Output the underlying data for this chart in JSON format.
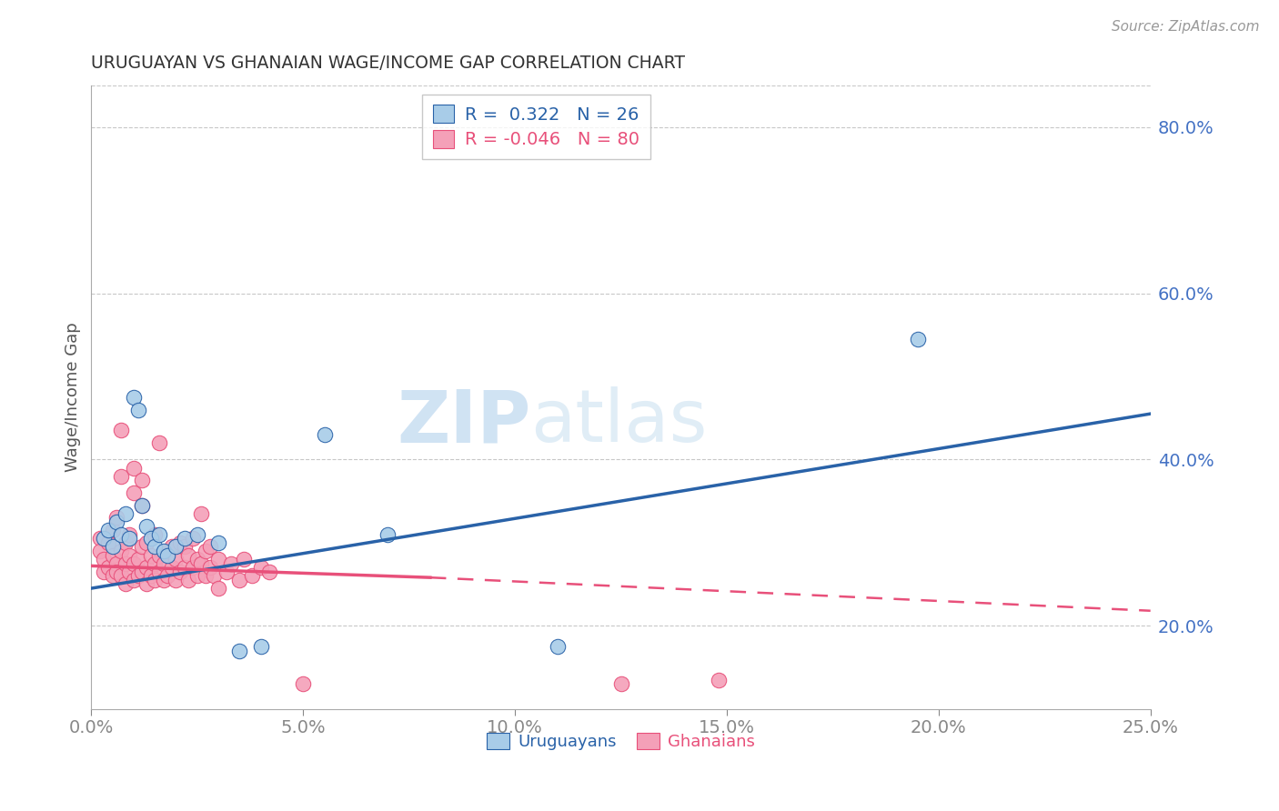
{
  "title": "URUGUAYAN VS GHANAIAN WAGE/INCOME GAP CORRELATION CHART",
  "source": "Source: ZipAtlas.com",
  "ylabel": "Wage/Income Gap",
  "xlim": [
    0.0,
    0.25
  ],
  "ylim": [
    0.1,
    0.85
  ],
  "yticks": [
    0.2,
    0.4,
    0.6,
    0.8
  ],
  "ytick_labels": [
    "20.0%",
    "40.0%",
    "60.0%",
    "80.0%"
  ],
  "xticks": [
    0.0,
    0.05,
    0.1,
    0.15,
    0.2,
    0.25
  ],
  "xtick_labels": [
    "0.0%",
    "5.0%",
    "10.0%",
    "15.0%",
    "20.0%",
    "25.0%"
  ],
  "bg_color": "#ffffff",
  "grid_color": "#c8c8c8",
  "blue_color": "#a8cce8",
  "pink_color": "#f4a0b8",
  "blue_line_color": "#2962a8",
  "pink_line_color": "#e8507a",
  "axis_color": "#4472c4",
  "legend_R_blue": "0.322",
  "legend_N_blue": "26",
  "legend_R_pink": "-0.046",
  "legend_N_pink": "80",
  "watermark_zip": "ZIP",
  "watermark_atlas": "atlas",
  "blue_trend": [
    0.0,
    0.25,
    0.245,
    0.455
  ],
  "pink_trend_solid": [
    0.0,
    0.08,
    0.272,
    0.258
  ],
  "pink_trend_dash": [
    0.08,
    0.25,
    0.258,
    0.218
  ],
  "uruguayan_points": [
    [
      0.003,
      0.305
    ],
    [
      0.004,
      0.315
    ],
    [
      0.005,
      0.295
    ],
    [
      0.006,
      0.325
    ],
    [
      0.007,
      0.31
    ],
    [
      0.008,
      0.335
    ],
    [
      0.009,
      0.305
    ],
    [
      0.01,
      0.475
    ],
    [
      0.011,
      0.46
    ],
    [
      0.012,
      0.345
    ],
    [
      0.013,
      0.32
    ],
    [
      0.014,
      0.305
    ],
    [
      0.015,
      0.295
    ],
    [
      0.016,
      0.31
    ],
    [
      0.017,
      0.29
    ],
    [
      0.018,
      0.285
    ],
    [
      0.02,
      0.295
    ],
    [
      0.022,
      0.305
    ],
    [
      0.025,
      0.31
    ],
    [
      0.03,
      0.3
    ],
    [
      0.035,
      0.17
    ],
    [
      0.04,
      0.175
    ],
    [
      0.055,
      0.43
    ],
    [
      0.07,
      0.31
    ],
    [
      0.195,
      0.545
    ],
    [
      0.11,
      0.175
    ]
  ],
  "ghanaian_points": [
    [
      0.002,
      0.305
    ],
    [
      0.002,
      0.29
    ],
    [
      0.003,
      0.28
    ],
    [
      0.003,
      0.265
    ],
    [
      0.004,
      0.27
    ],
    [
      0.004,
      0.3
    ],
    [
      0.005,
      0.285
    ],
    [
      0.005,
      0.26
    ],
    [
      0.005,
      0.315
    ],
    [
      0.006,
      0.275
    ],
    [
      0.006,
      0.33
    ],
    [
      0.006,
      0.265
    ],
    [
      0.007,
      0.26
    ],
    [
      0.007,
      0.29
    ],
    [
      0.007,
      0.38
    ],
    [
      0.007,
      0.435
    ],
    [
      0.008,
      0.275
    ],
    [
      0.008,
      0.25
    ],
    [
      0.008,
      0.3
    ],
    [
      0.009,
      0.265
    ],
    [
      0.009,
      0.285
    ],
    [
      0.009,
      0.31
    ],
    [
      0.01,
      0.255
    ],
    [
      0.01,
      0.275
    ],
    [
      0.01,
      0.36
    ],
    [
      0.01,
      0.39
    ],
    [
      0.011,
      0.26
    ],
    [
      0.011,
      0.28
    ],
    [
      0.012,
      0.265
    ],
    [
      0.012,
      0.295
    ],
    [
      0.012,
      0.345
    ],
    [
      0.012,
      0.375
    ],
    [
      0.013,
      0.25
    ],
    [
      0.013,
      0.27
    ],
    [
      0.013,
      0.3
    ],
    [
      0.014,
      0.26
    ],
    [
      0.014,
      0.285
    ],
    [
      0.015,
      0.255
    ],
    [
      0.015,
      0.275
    ],
    [
      0.015,
      0.31
    ],
    [
      0.016,
      0.265
    ],
    [
      0.016,
      0.285
    ],
    [
      0.016,
      0.42
    ],
    [
      0.017,
      0.255
    ],
    [
      0.017,
      0.275
    ],
    [
      0.018,
      0.26
    ],
    [
      0.018,
      0.29
    ],
    [
      0.019,
      0.27
    ],
    [
      0.019,
      0.295
    ],
    [
      0.02,
      0.255
    ],
    [
      0.02,
      0.28
    ],
    [
      0.021,
      0.265
    ],
    [
      0.021,
      0.3
    ],
    [
      0.022,
      0.27
    ],
    [
      0.022,
      0.295
    ],
    [
      0.023,
      0.255
    ],
    [
      0.023,
      0.285
    ],
    [
      0.024,
      0.27
    ],
    [
      0.024,
      0.305
    ],
    [
      0.025,
      0.26
    ],
    [
      0.025,
      0.28
    ],
    [
      0.026,
      0.275
    ],
    [
      0.026,
      0.335
    ],
    [
      0.027,
      0.26
    ],
    [
      0.027,
      0.29
    ],
    [
      0.028,
      0.27
    ],
    [
      0.028,
      0.295
    ],
    [
      0.029,
      0.26
    ],
    [
      0.03,
      0.28
    ],
    [
      0.03,
      0.245
    ],
    [
      0.032,
      0.265
    ],
    [
      0.033,
      0.275
    ],
    [
      0.035,
      0.255
    ],
    [
      0.036,
      0.28
    ],
    [
      0.038,
      0.26
    ],
    [
      0.04,
      0.27
    ],
    [
      0.042,
      0.265
    ],
    [
      0.05,
      0.13
    ],
    [
      0.125,
      0.13
    ],
    [
      0.148,
      0.135
    ]
  ]
}
